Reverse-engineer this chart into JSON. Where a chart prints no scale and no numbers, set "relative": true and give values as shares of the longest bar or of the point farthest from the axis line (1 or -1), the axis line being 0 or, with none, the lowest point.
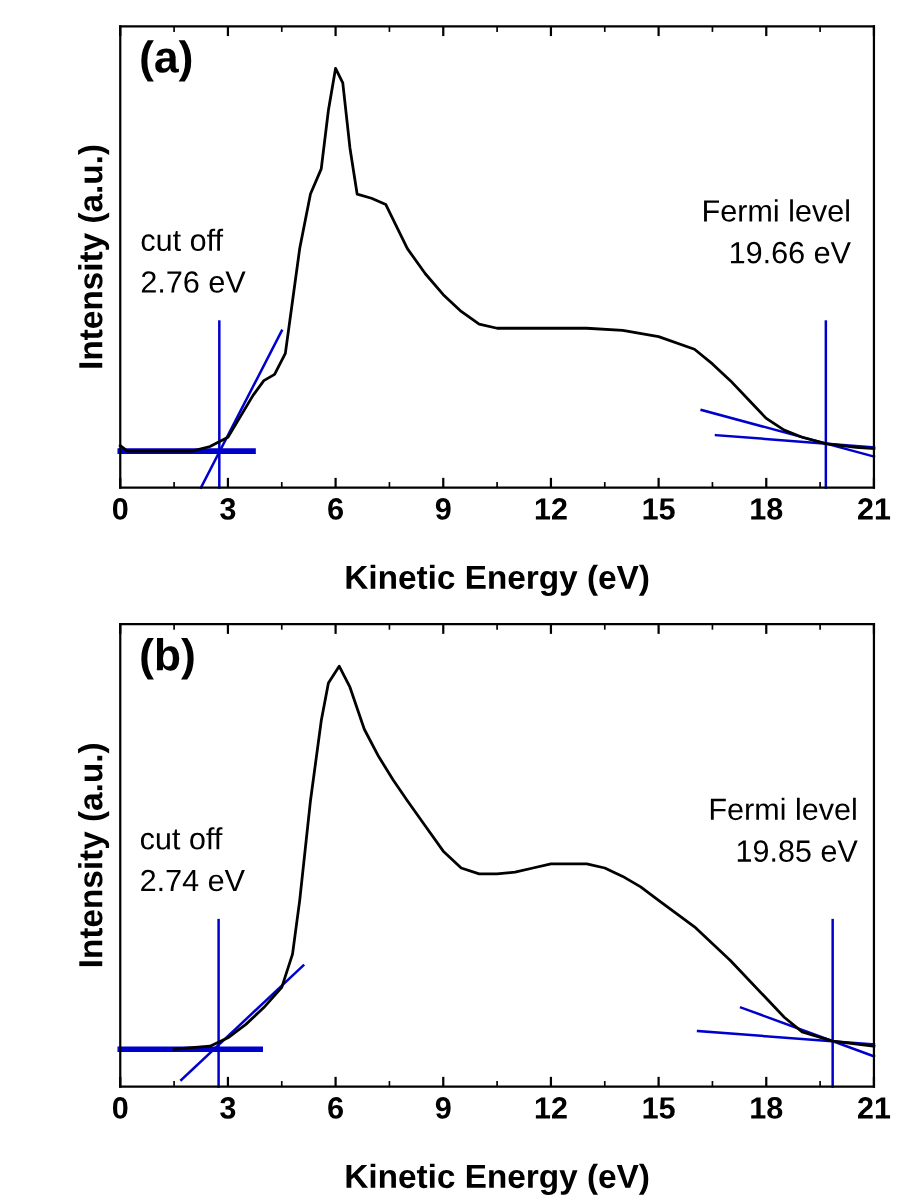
{
  "chart_data": [
    {
      "type": "line",
      "xlabel": "Kinetic Energy (eV)",
      "ylabel": "Intensity (a.u.)",
      "relative": true,
      "annotations": [
        "(a)"
      ],
      "xlim": [
        0,
        21
      ],
      "xticks": [
        0,
        3,
        6,
        9,
        12,
        15,
        18,
        21
      ],
      "legend": false,
      "grid": false,
      "series": [
        {
          "color": "#000000",
          "x": [
            0,
            0.2,
            2.0,
            2.5,
            3.0,
            3.7,
            4.0,
            4.3,
            4.6,
            4.8,
            5.0,
            5.3,
            5.6,
            5.8,
            6.0,
            6.2,
            6.4,
            6.6,
            7.0,
            7.4,
            8.0,
            8.5,
            9.0,
            9.5,
            10.0,
            10.5,
            11,
            12,
            13,
            14,
            15,
            16,
            16.5,
            17,
            17.5,
            18,
            18.5,
            19,
            19.66,
            20.5,
            21
          ],
          "values": [
            0.1,
            0.087,
            0.087,
            0.098,
            0.12,
            0.22,
            0.255,
            0.27,
            0.32,
            0.445,
            0.57,
            0.7,
            0.76,
            0.9,
            1.0,
            0.965,
            0.81,
            0.7,
            0.69,
            0.675,
            0.57,
            0.51,
            0.46,
            0.42,
            0.39,
            0.38,
            0.38,
            0.38,
            0.38,
            0.375,
            0.36,
            0.33,
            0.295,
            0.255,
            0.21,
            0.165,
            0.137,
            0.12,
            0.105,
            0.096,
            0.093
          ]
        },
        {
          "color": "#0000cc",
          "x": [
            0,
            3.7
          ],
          "values": [
            0.087,
            0.087
          ]
        },
        {
          "color": "#0000cc",
          "x": [
            2.25,
            4.5
          ],
          "values": [
            0,
            0.374
          ]
        },
        {
          "color": "#0000cc",
          "x": [
            16.2,
            21
          ],
          "values": [
            0.185,
            0.074
          ]
        },
        {
          "color": "#0000cc",
          "x": [
            16.6,
            21
          ],
          "values": [
            0.125,
            0.096
          ]
        }
      ],
      "ref_lines": [
        {
          "axis": "x",
          "value": 2.76,
          "label": "cut off\n2.76 eV",
          "color": "#0000cc"
        },
        {
          "axis": "x",
          "value": 19.66,
          "label": "Fermi level\n19.66 eV",
          "color": "#0000cc"
        }
      ]
    },
    {
      "type": "line",
      "xlabel": "Kinetic Energy (eV)",
      "ylabel": "Intensity (a.u.)",
      "relative": true,
      "annotations": [
        "(b)"
      ],
      "xlim": [
        0,
        21
      ],
      "xticks": [
        0,
        3,
        6,
        9,
        12,
        15,
        18,
        21
      ],
      "legend": false,
      "grid": false,
      "series": [
        {
          "color": "#000000",
          "x": [
            1.5,
            2.5,
            3.0,
            3.5,
            4.0,
            4.5,
            4.8,
            5.0,
            5.3,
            5.6,
            5.8,
            6.1,
            6.4,
            6.8,
            7.2,
            7.6,
            8.0,
            8.5,
            9.0,
            9.5,
            10,
            10.5,
            11,
            11.5,
            12,
            13,
            13.5,
            14,
            14.5,
            15,
            16,
            17,
            18,
            18.5,
            19,
            19.85,
            21
          ],
          "values": [
            0.089,
            0.096,
            0.116,
            0.148,
            0.188,
            0.236,
            0.315,
            0.443,
            0.68,
            0.87,
            0.96,
            1.0,
            0.95,
            0.85,
            0.785,
            0.73,
            0.68,
            0.62,
            0.56,
            0.52,
            0.506,
            0.506,
            0.51,
            0.52,
            0.53,
            0.53,
            0.52,
            0.5,
            0.475,
            0.443,
            0.38,
            0.3,
            0.21,
            0.165,
            0.13,
            0.108,
            0.096
          ]
        },
        {
          "color": "#0000cc",
          "x": [
            0,
            3.9
          ],
          "values": [
            0.089,
            0.089
          ]
        },
        {
          "color": "#0000cc",
          "x": [
            1.7,
            5.1
          ],
          "values": [
            0.016,
            0.288
          ]
        },
        {
          "color": "#0000cc",
          "x": [
            17.3,
            21
          ],
          "values": [
            0.188,
            0.072
          ]
        },
        {
          "color": "#0000cc",
          "x": [
            16.1,
            21
          ],
          "values": [
            0.132,
            0.1006
          ]
        }
      ],
      "ref_lines": [
        {
          "axis": "x",
          "value": 2.74,
          "label": "cut off\n2.74 eV",
          "color": "#0000cc"
        },
        {
          "axis": "x",
          "value": 19.85,
          "label": "Fermi level\n19.85 eV",
          "color": "#0000cc"
        }
      ]
    }
  ]
}
